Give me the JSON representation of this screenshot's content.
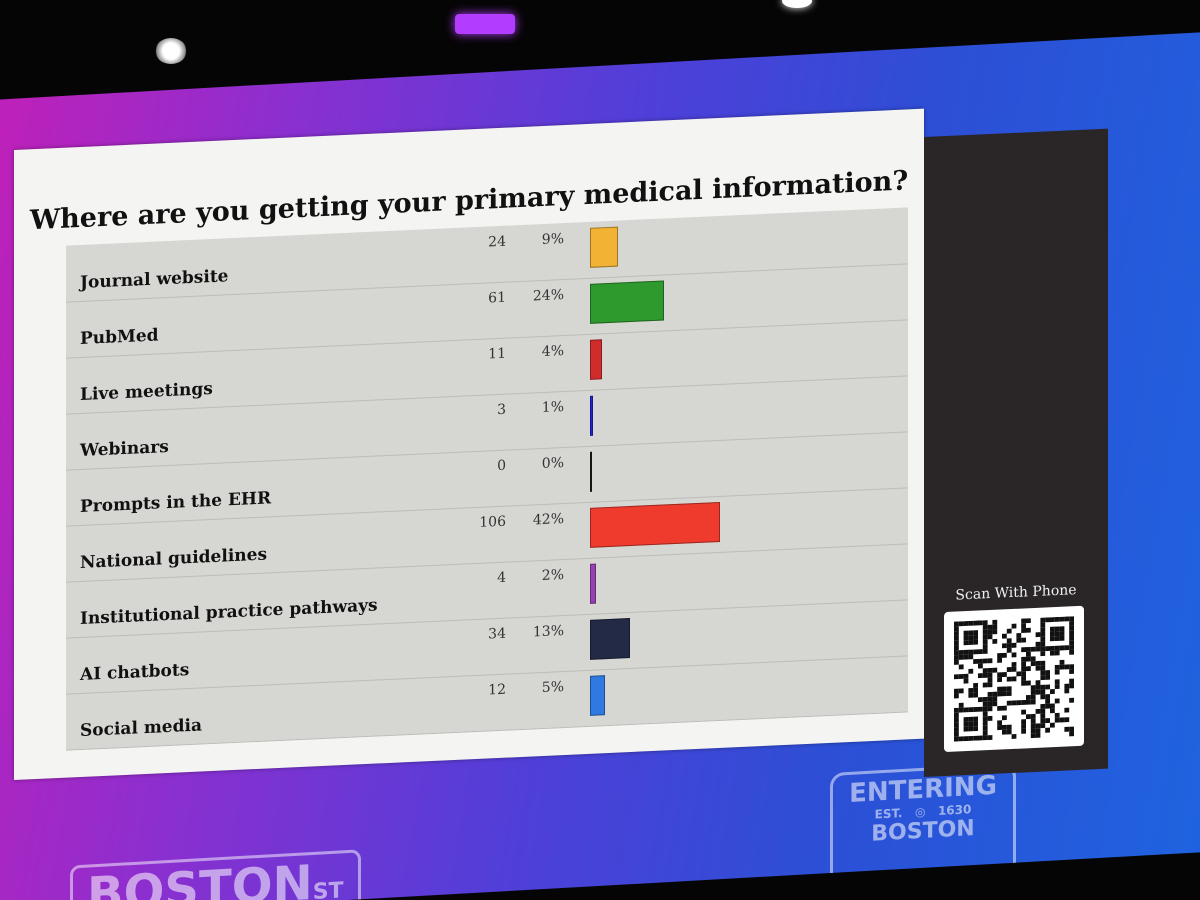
{
  "slide": {
    "qr_caption": "Scan With Phone"
  },
  "background": {
    "sign_left": "BOSTON",
    "sign_left_suffix": "ST",
    "sign_right_top": "ENTERING",
    "sign_right_est": "EST.",
    "sign_right_year": "1630",
    "sign_right_bottom": "BOSTON"
  },
  "colors": {
    "journal": "#f2b233",
    "pubmed": "#2e9a2e",
    "live": "#d12c2c",
    "webinars": "#2323d8",
    "ehr": "#222222",
    "guidelines": "#ee3b2e",
    "pathways": "#9a3fb0",
    "chatbots": "#232a45",
    "social": "#2f7ae0"
  },
  "chart_data": {
    "type": "bar",
    "title": "Where are you getting your primary medical information?",
    "categories": [
      "Journal website",
      "PubMed",
      "Live meetings",
      "Webinars",
      "Prompts in the EHR",
      "National guidelines",
      "Institutional practice pathways",
      "AI chatbots",
      "Social media"
    ],
    "counts": [
      24,
      61,
      11,
      3,
      0,
      106,
      4,
      34,
      12
    ],
    "percent_labels": [
      "9%",
      "24%",
      "4%",
      "1%",
      "0%",
      "42%",
      "2%",
      "13%",
      "5%"
    ],
    "bar_colors": [
      "#f2b233",
      "#2e9a2e",
      "#d12c2c",
      "#2323d8",
      "#222222",
      "#ee3b2e",
      "#9a3fb0",
      "#232a45",
      "#2f7ae0"
    ],
    "orientation": "horizontal"
  }
}
